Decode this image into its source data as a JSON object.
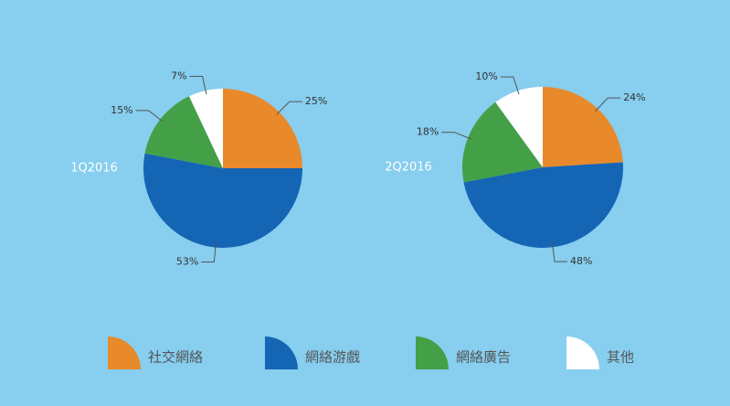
{
  "chart_data": [
    {
      "type": "pie",
      "title": "1Q2016",
      "values": [
        25,
        53,
        15,
        7
      ],
      "value_labels": [
        "25%",
        "53%",
        "15%",
        "7%"
      ]
    },
    {
      "type": "pie",
      "title": "2Q2016",
      "values": [
        24,
        48,
        18,
        10
      ],
      "value_labels": [
        "24%",
        "48%",
        "18%",
        "10%"
      ]
    }
  ],
  "legend": {
    "categories": [
      "社交網絡",
      "網絡游戲",
      "網絡廣告",
      "其他"
    ],
    "colors": [
      "#e8892a",
      "#1565b5",
      "#43a047",
      "#ffffff"
    ]
  }
}
